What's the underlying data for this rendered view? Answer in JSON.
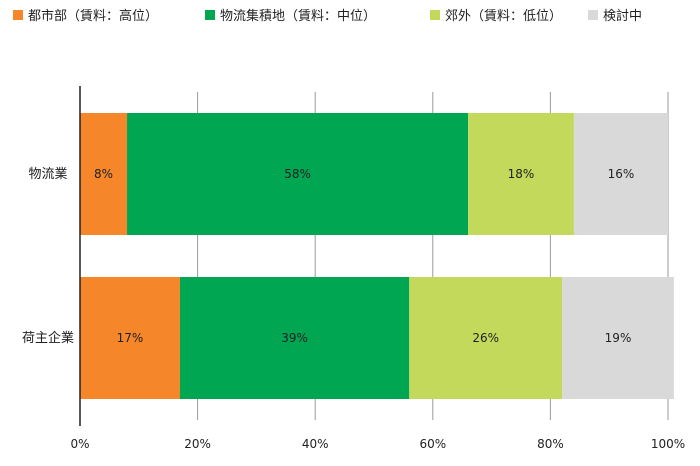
{
  "chart_data": {
    "type": "bar",
    "orientation": "horizontal",
    "stacked": true,
    "percent": true,
    "categories": [
      "物流業",
      "荷主企業"
    ],
    "series": [
      {
        "name": "都市部（賃料：高位）",
        "color": "#F5862A",
        "values": [
          8,
          17
        ],
        "labels": [
          "8%",
          "17%"
        ]
      },
      {
        "name": "物流集積地（賃料：中位）",
        "color": "#00A651",
        "values": [
          58,
          39
        ],
        "labels": [
          "58%",
          "39%"
        ]
      },
      {
        "name": "郊外（賃料：低位）",
        "color": "#C3D95B",
        "values": [
          18,
          26
        ],
        "labels": [
          "18%",
          "26%"
        ]
      },
      {
        "name": "検討中",
        "color": "#D9D9D9",
        "values": [
          16,
          19
        ],
        "labels": [
          "16%",
          "19%"
        ]
      }
    ],
    "xlim": [
      0,
      100
    ],
    "x_ticks": [
      "0%",
      "20%",
      "40%",
      "60%",
      "80%",
      "100%"
    ],
    "grid": true,
    "legend_position": "top"
  }
}
